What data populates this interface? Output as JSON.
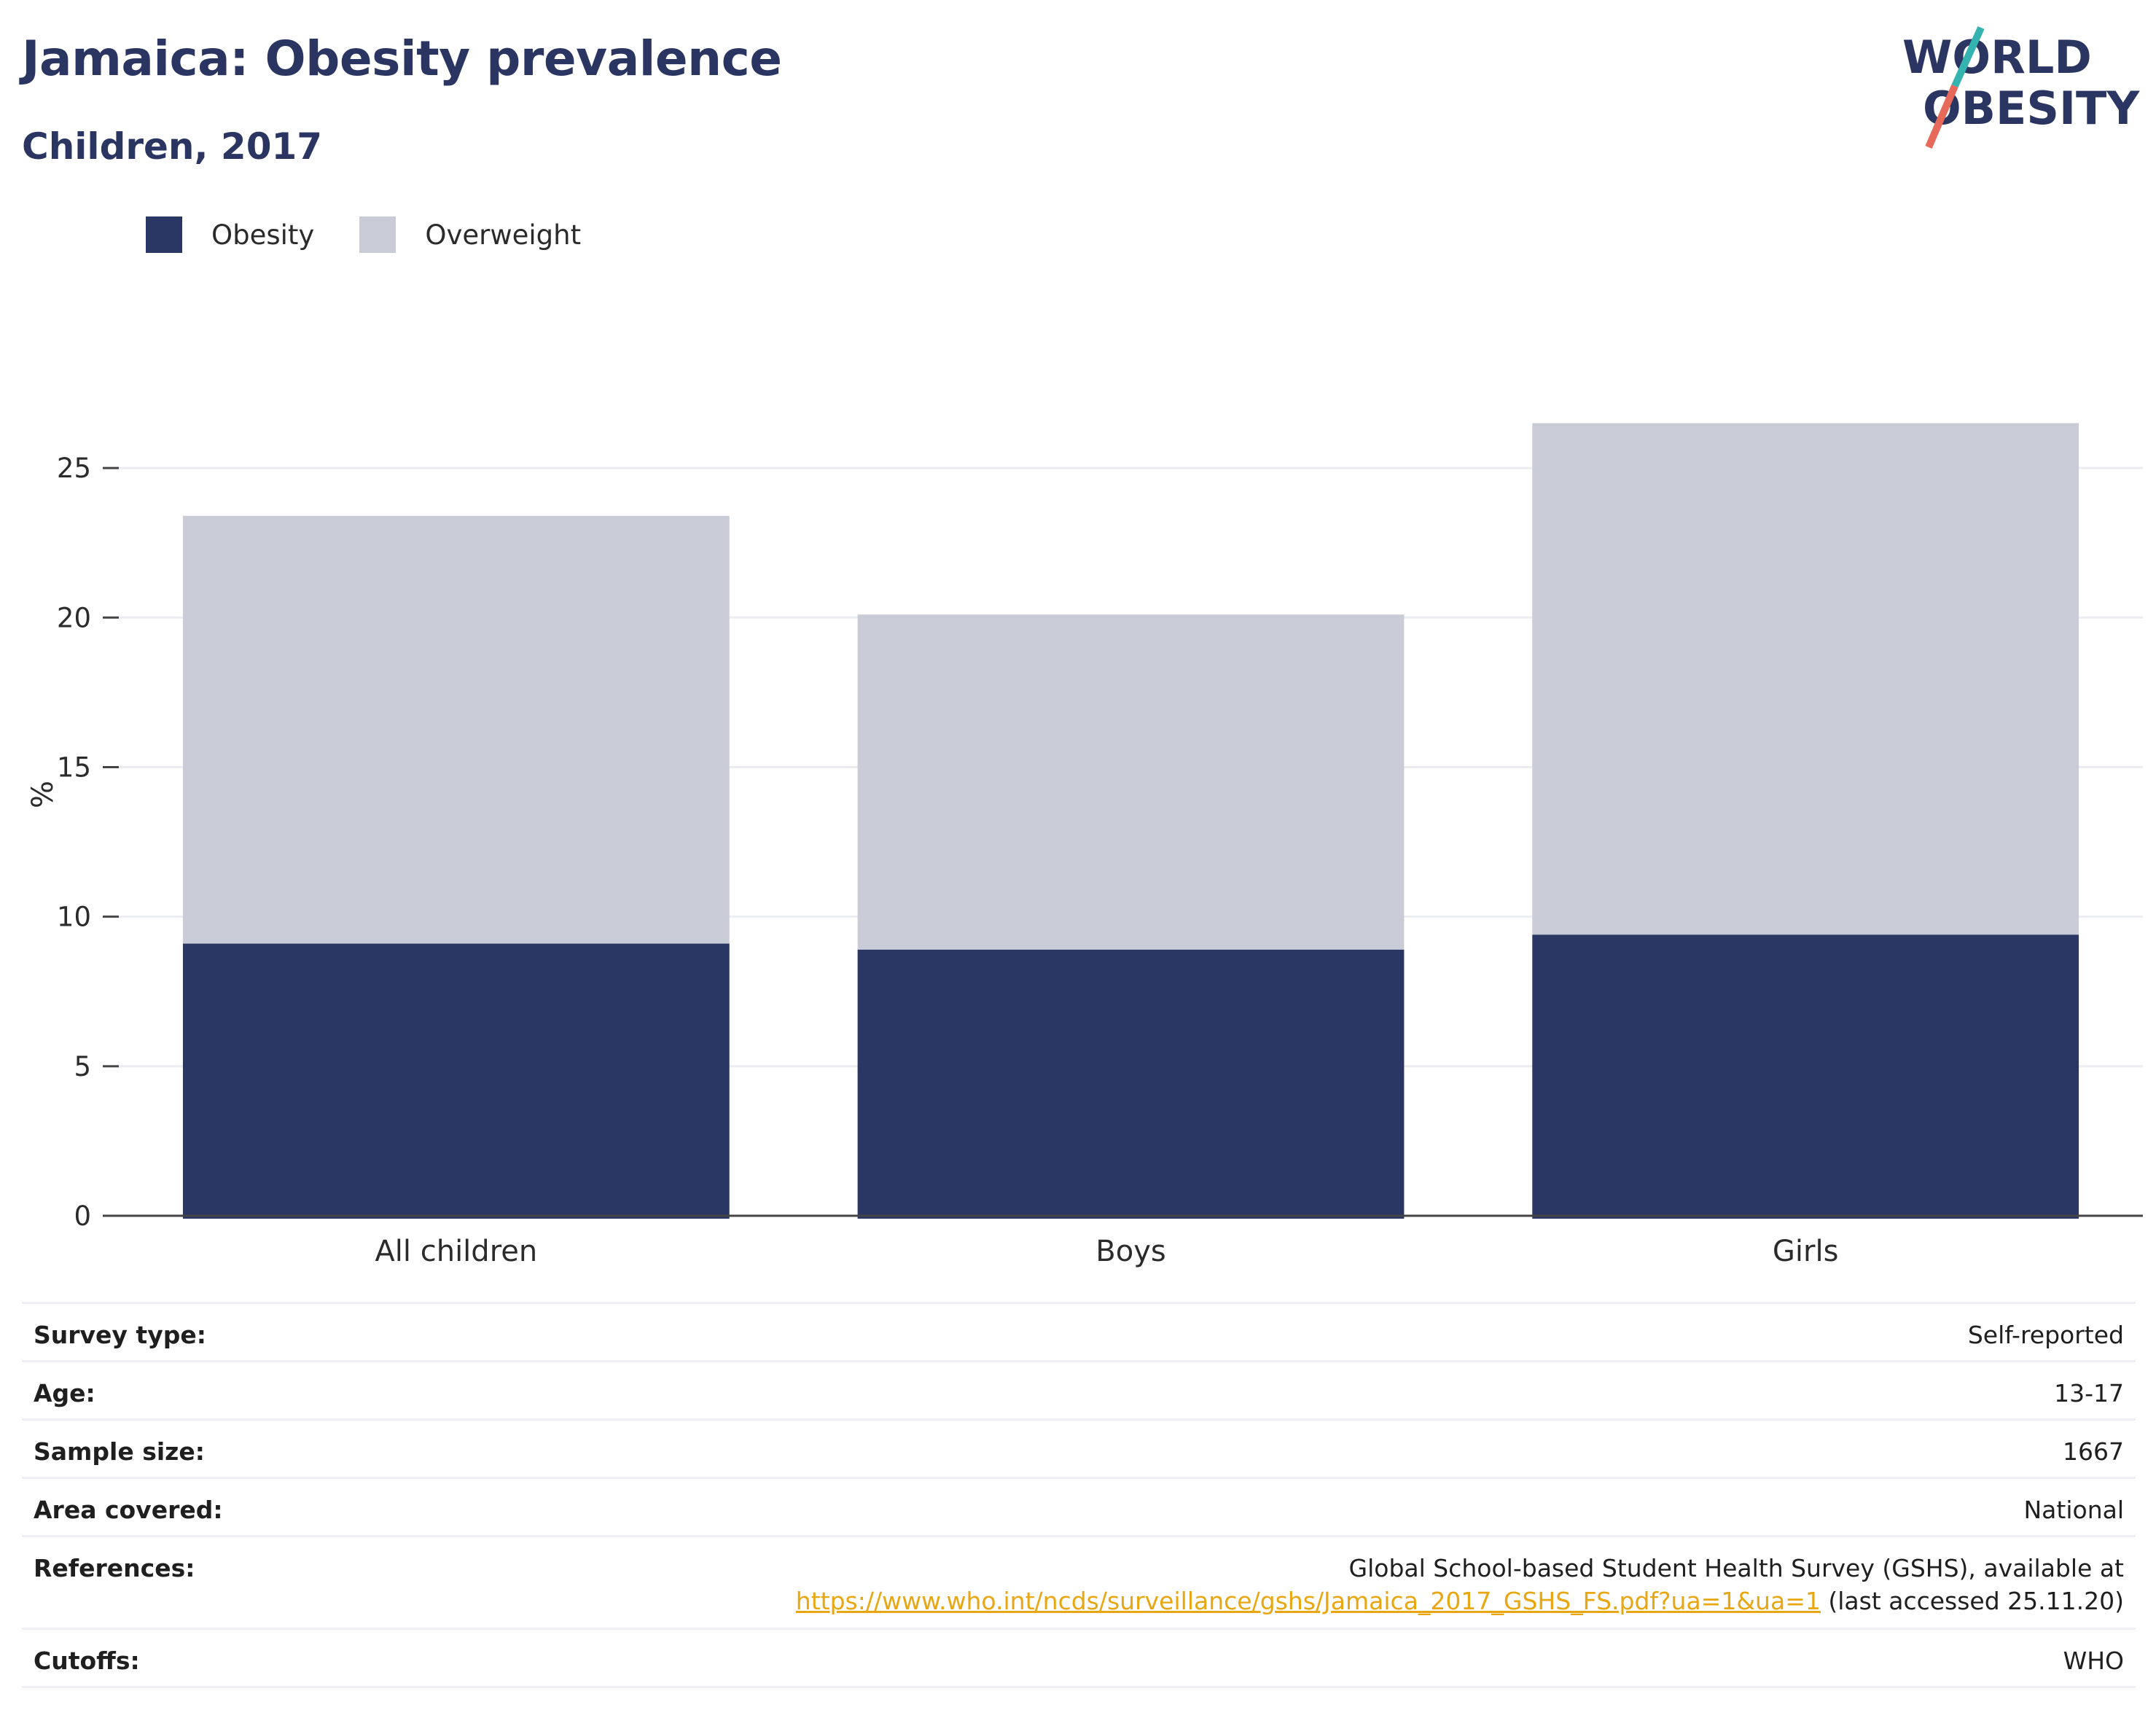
{
  "header": {
    "title": "Jamaica: Obesity prevalence",
    "subtitle": "Children, 2017",
    "logo_text_line1": "WORLD",
    "logo_text_line2": "OBESITY"
  },
  "colors": {
    "obesity": "#2a3663",
    "overweight": "#c9cbd7",
    "logo_teal": "#35b3b0",
    "logo_coral": "#e7695a",
    "link": "#e8a712"
  },
  "chart_data": {
    "type": "bar",
    "stacked": true,
    "categories": [
      "All children",
      "Boys",
      "Girls"
    ],
    "series": [
      {
        "name": "Obesity",
        "values": [
          9.1,
          8.9,
          9.4
        ]
      },
      {
        "name": "Overweight",
        "values": [
          14.3,
          11.2,
          17.1
        ]
      }
    ],
    "ylabel": "%",
    "xlabel": "",
    "ylim": [
      0,
      27
    ],
    "yticks": [
      0,
      5,
      10,
      15,
      20,
      25
    ],
    "grid": true,
    "legend_position": "top-left"
  },
  "info": {
    "rows": [
      {
        "key": "Survey type:",
        "value": "Self-reported"
      },
      {
        "key": "Age:",
        "value": "13-17"
      },
      {
        "key": "Sample size:",
        "value": "1667"
      },
      {
        "key": "Area covered:",
        "value": "National"
      }
    ],
    "references": {
      "key": "References:",
      "line1": "Global School-based Student Health Survey (GSHS), available at",
      "link": "https://www.who.int/ncds/surveillance/gshs/Jamaica_2017_GSHS_FS.pdf?ua=1&ua=1",
      "suffix": " (last accessed 25.11.20)"
    },
    "cutoffs": {
      "key": "Cutoffs:",
      "value": "WHO"
    }
  }
}
